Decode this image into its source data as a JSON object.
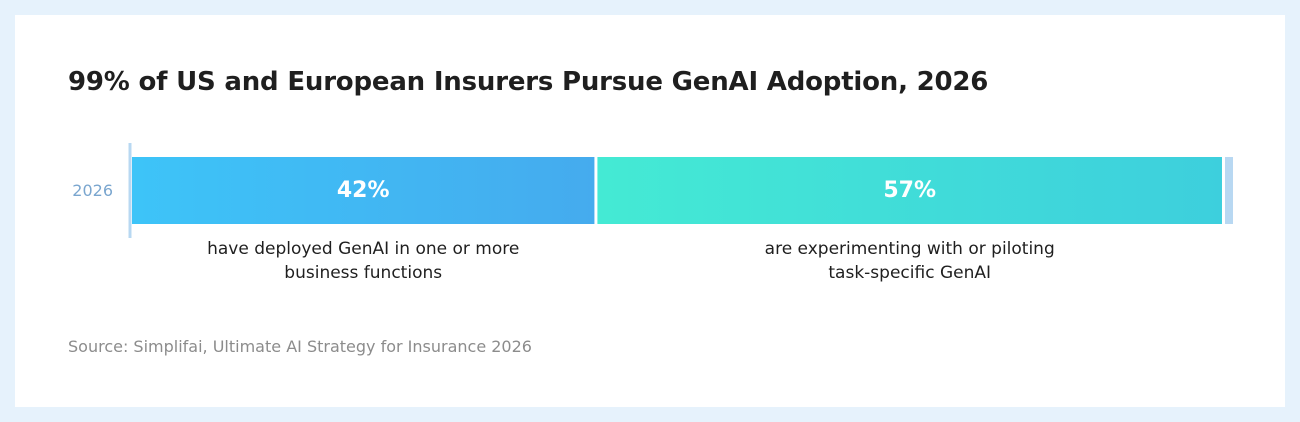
{
  "title": "99% of US and European Insurers Pursue GenAI Adoption, 2026",
  "source": "Source: Simplifai, Ultimate AI Strategy for Insurance 2026",
  "colors": {
    "axis": "#b8d8f2",
    "remainder": "#b8d8f2"
  },
  "chart_data": {
    "type": "bar",
    "orientation": "horizontal",
    "stacked": true,
    "categories": [
      "2026"
    ],
    "xlim": [
      0,
      100
    ],
    "grid": false,
    "legend": "none",
    "series": [
      {
        "value_label": "42%",
        "values": [
          42
        ],
        "label_lines": [
          "have deployed GenAI in one or more",
          "business functions"
        ],
        "colors": [
          "#3dc4f8",
          "#45abee"
        ]
      },
      {
        "value_label": "57%",
        "values": [
          57
        ],
        "label_lines": [
          "are experimenting with or piloting",
          "task-specific GenAI"
        ],
        "colors": [
          "#44ead4",
          "#3dcfdd"
        ]
      },
      {
        "value_label": "",
        "values": [
          1
        ],
        "label_lines": [],
        "colors": [
          "#b8d8f2",
          "#b8d8f2"
        ]
      }
    ]
  }
}
